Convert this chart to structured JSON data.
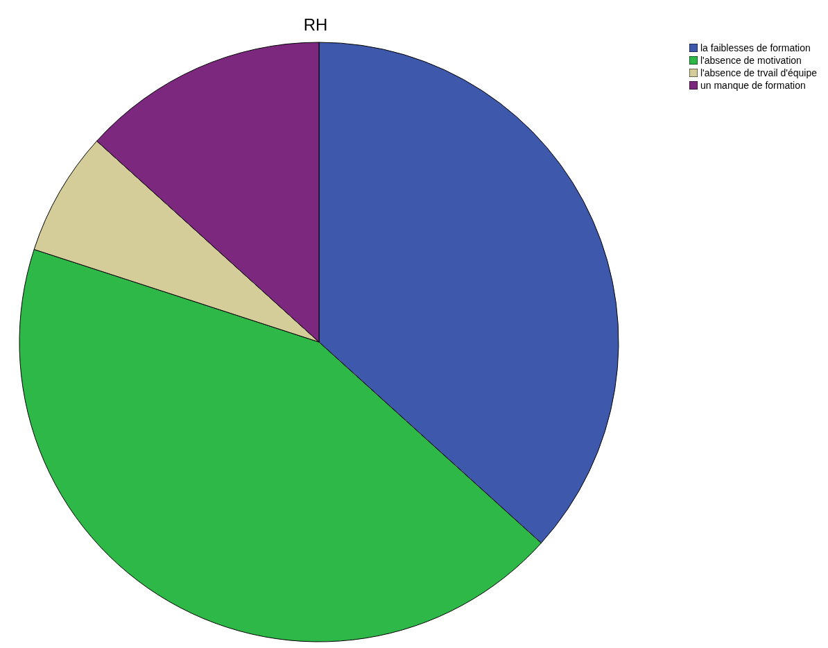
{
  "chart_data": {
    "type": "pie",
    "title": "RH",
    "categories": [
      "la faiblesses de formation",
      "l'absence de motivation",
      "l'absence de trvail d'équipe",
      "un manque de formation"
    ],
    "values": [
      36.7,
      43.3,
      6.7,
      13.3
    ],
    "colors": [
      "#3e58ac",
      "#2eb848",
      "#d4cc99",
      "#7b287e"
    ],
    "legend": "top right"
  }
}
